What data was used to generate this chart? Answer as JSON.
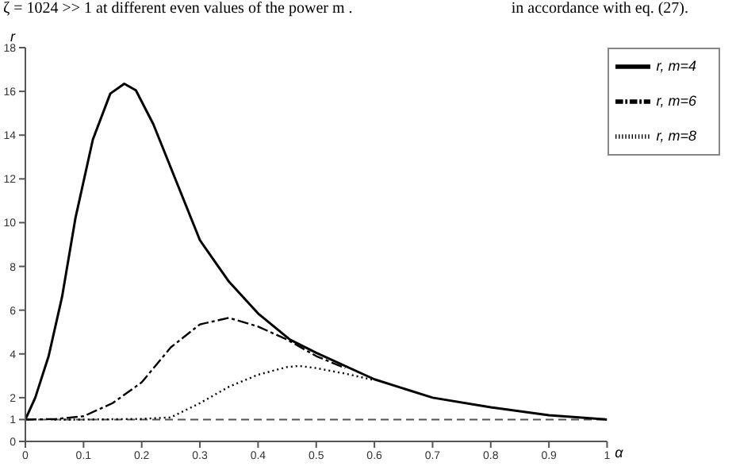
{
  "chart_data": {
    "type": "line",
    "xlabel": "α",
    "ylabel": "r",
    "annotations": [
      "ζ = 1024 >> 1 at different even values of the power m .",
      "in accordance with eq. (27)."
    ],
    "xlim": [
      0,
      1
    ],
    "xticks": [
      0,
      0.1,
      0.2,
      0.3,
      0.4,
      0.5,
      0.6,
      0.7,
      0.8,
      0.9,
      1
    ],
    "ylim": [
      0,
      18
    ],
    "yticks": [
      0,
      1,
      2,
      4,
      6,
      8,
      10,
      12,
      14,
      16,
      18
    ],
    "grid": false,
    "legend": "top right",
    "marker": "none",
    "ref_lines": [
      {
        "axis": "y",
        "value": 1,
        "line_style": "dashed",
        "color": "#555555"
      }
    ],
    "series": [
      {
        "name": "r, m=4",
        "color": "#000000",
        "line_style": "solid",
        "x": [
          0,
          0.017,
          0.04,
          0.063,
          0.086,
          0.116,
          0.146,
          0.17,
          0.19,
          0.22,
          0.26,
          0.3,
          0.35,
          0.4,
          0.455,
          0.5,
          0.6,
          0.7,
          0.8,
          0.9,
          1
        ],
        "values": [
          1,
          2,
          3.9,
          6.6,
          10.2,
          13.8,
          15.9,
          16.35,
          16.05,
          14.5,
          11.85,
          9.2,
          7.3,
          5.85,
          4.65,
          4.05,
          2.84,
          2,
          1.56,
          1.2,
          1
        ]
      },
      {
        "name": "r, m=6",
        "color": "#000000",
        "line_style": "dashed",
        "x": [
          0,
          0.05,
          0.1,
          0.15,
          0.2,
          0.25,
          0.3,
          0.35,
          0.4,
          0.45,
          0.5,
          0.55
        ],
        "values": [
          1,
          1.02,
          1.15,
          1.75,
          2.7,
          4.3,
          5.35,
          5.65,
          5.25,
          4.65,
          3.9,
          3.35
        ]
      },
      {
        "name": "r, m=8",
        "color": "#000000",
        "line_style": "dotted",
        "x": [
          0.05,
          0.1,
          0.2,
          0.25,
          0.3,
          0.35,
          0.4,
          0.45,
          0.47,
          0.5,
          0.55,
          0.6
        ],
        "values": [
          1,
          1,
          1.03,
          1.1,
          1.75,
          2.5,
          3.05,
          3.4,
          3.45,
          3.35,
          3.1,
          2.8
        ]
      }
    ]
  }
}
